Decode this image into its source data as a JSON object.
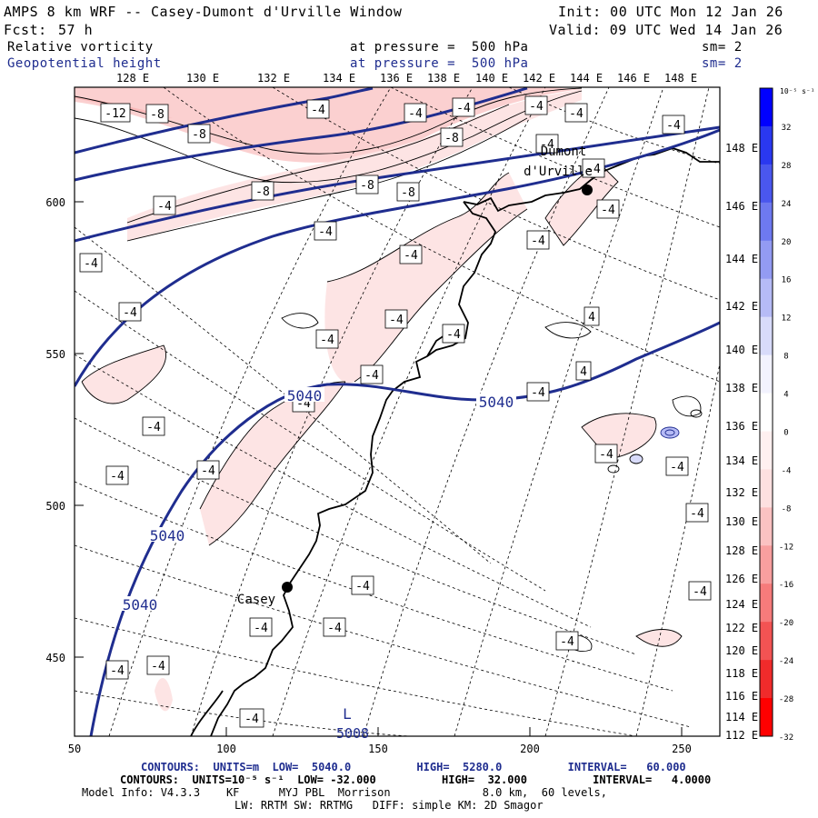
{
  "header": {
    "title": "AMPS 8 km WRF -- Casey-Dumont d'Urville Window",
    "init": "Init: 00 UTC Mon 12 Jan 26",
    "fcst_label": "Fcst:",
    "fcst_value": "57 h",
    "valid": "Valid: 09 UTC Wed 14 Jan 26",
    "field1_name": "Relative vorticity",
    "field1_level": "at pressure =  500 hPa",
    "field1_sm": "sm= 2",
    "field2_name": "Geopotential height",
    "field2_level": "at pressure =  500 hPa",
    "field2_sm": "sm= 2"
  },
  "top_lon_labels": [
    "128 E",
    "130 E",
    "132 E",
    "134 E",
    "136 E",
    "138 E",
    "140 E",
    "142 E",
    "144 E",
    "146 E",
    "148 E"
  ],
  "right_lon_labels": [
    "148 E",
    "146 E",
    "144 E",
    "142 E",
    "140 E",
    "138 E",
    "136 E",
    "134 E",
    "132 E",
    "130 E",
    "128 E",
    "126 E",
    "124 E",
    "122 E",
    "120 E",
    "118 E",
    "116 E",
    "114 E",
    "112 E"
  ],
  "y_axis_labels": [
    "600",
    "550",
    "500",
    "450"
  ],
  "x_axis_labels": [
    "50",
    "100",
    "150",
    "200",
    "250"
  ],
  "places": [
    {
      "name": "Dumont",
      "name2": "d'Urville",
      "lat_lon": "Dumont d'Urville station"
    },
    {
      "name": "Casey",
      "name2": "",
      "lat_lon": "Casey station"
    }
  ],
  "height_contour_labels": [
    "5040",
    "5040",
    "5040",
    "5040"
  ],
  "low_marker": {
    "letter": "L",
    "value": "5008"
  },
  "vorticity_labels": [
    "-12",
    "-8",
    "-8",
    "-8",
    "-8",
    "-8",
    "-8",
    "-4",
    "-4",
    "-4",
    "-4",
    "-4",
    "-4",
    "-4",
    "-4",
    "-4",
    "-4",
    "-4",
    "-4",
    "-4",
    "-4",
    "-4",
    "-4",
    "-4",
    "-4",
    "-4",
    "-4",
    "-4",
    "-4",
    "-4",
    "-4",
    "-4",
    "-4",
    "-4",
    "-4",
    "-4",
    "-4",
    "-4",
    "-4",
    "-4",
    "-4",
    "4",
    "4"
  ],
  "colorbar": {
    "unit_label": "10⁻⁵ s⁻¹",
    "ticks": [
      "32",
      "28",
      "24",
      "20",
      "16",
      "12",
      "8",
      "4",
      "0",
      "-4",
      "-8",
      "-12",
      "-16",
      "-20",
      "-24",
      "-28",
      "-32"
    ],
    "colors": [
      "#0000ff",
      "#2a38f0",
      "#4a57ee",
      "#6e79f0",
      "#939bf3",
      "#b6bbf6",
      "#d8dbfa",
      "#f2f2fe",
      "#ffffff",
      "#fff0f0",
      "#fde0e0",
      "#fbc2c2",
      "#f89f9f",
      "#f67b7b",
      "#f35353",
      "#f02b2b",
      "#ff0000"
    ]
  },
  "footer": {
    "line1": "CONTOURS:  UNITS=m  LOW=  5040.0          HIGH=  5280.0          INTERVAL=   60.000",
    "line2": "CONTOURS:  UNITS=10⁻⁵ s⁻¹  LOW= -32.000          HIGH=  32.000          INTERVAL=   4.0000",
    "line3": "Model Info: V4.3.3    KF      MYJ PBL  Morrison              8.0 km,  60 levels,",
    "line4": "LW: RRTM SW: RRTMG   DIFF: simple KM: 2D Smagor"
  }
}
